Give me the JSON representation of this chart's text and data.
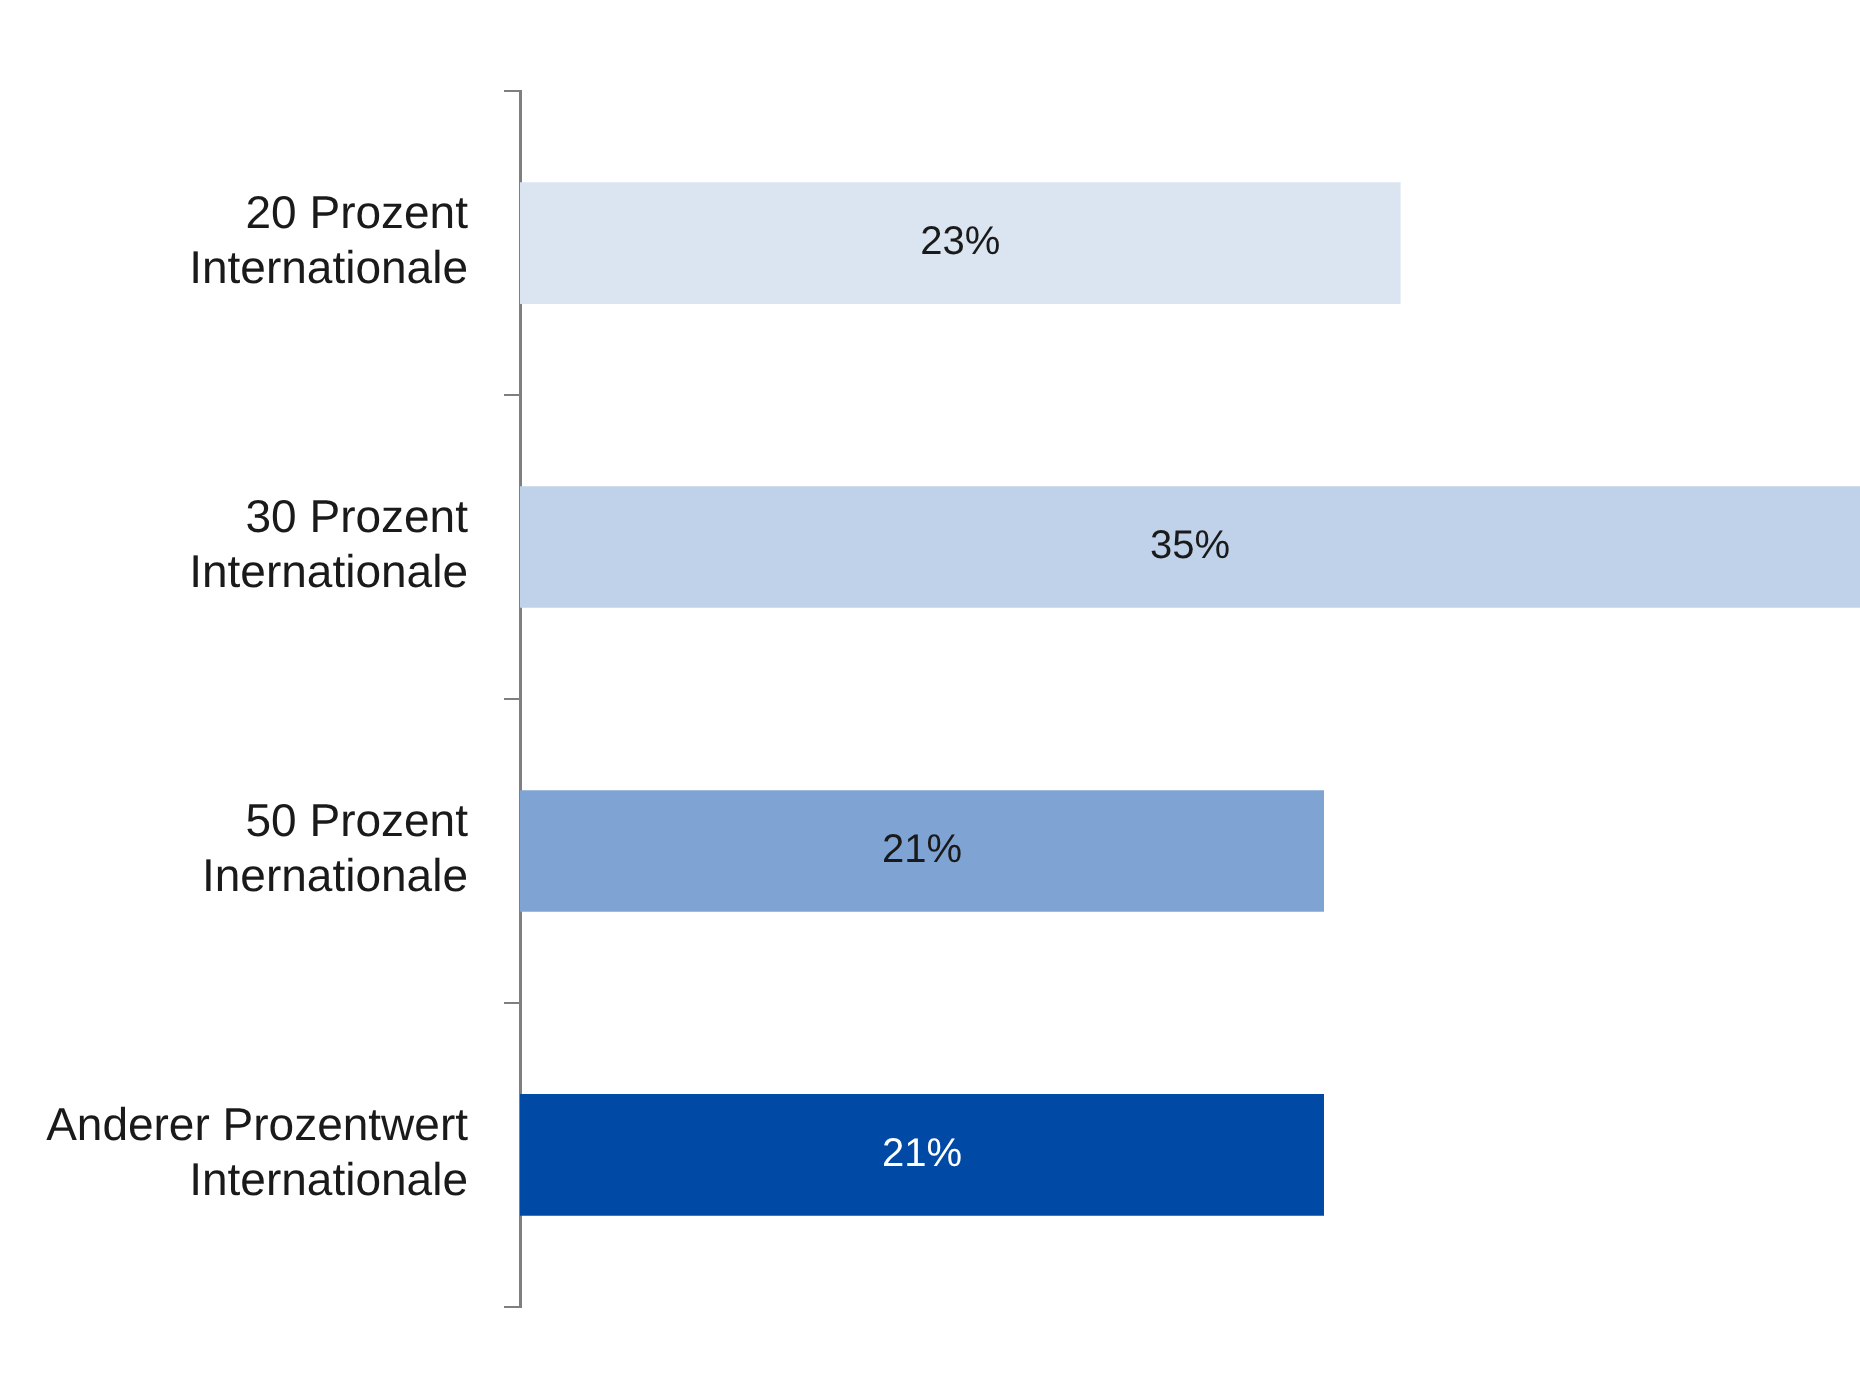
{
  "chart_data": {
    "type": "bar",
    "orientation": "horizontal",
    "categories": [
      "20 Prozent Internationale",
      "30 Prozent Internationale",
      "50 Prozent Inernationale",
      "Anderer Prozentwert Internationale"
    ],
    "values": [
      23,
      35,
      21,
      21
    ],
    "colors": [
      "#dbe5f1",
      "#c0d2e9",
      "#7fa4d3",
      "#004aa6"
    ],
    "value_labels": [
      "23%",
      "35%",
      "21%",
      "21%"
    ],
    "xlim": [
      0,
      35
    ],
    "grid": false,
    "legend": false
  }
}
